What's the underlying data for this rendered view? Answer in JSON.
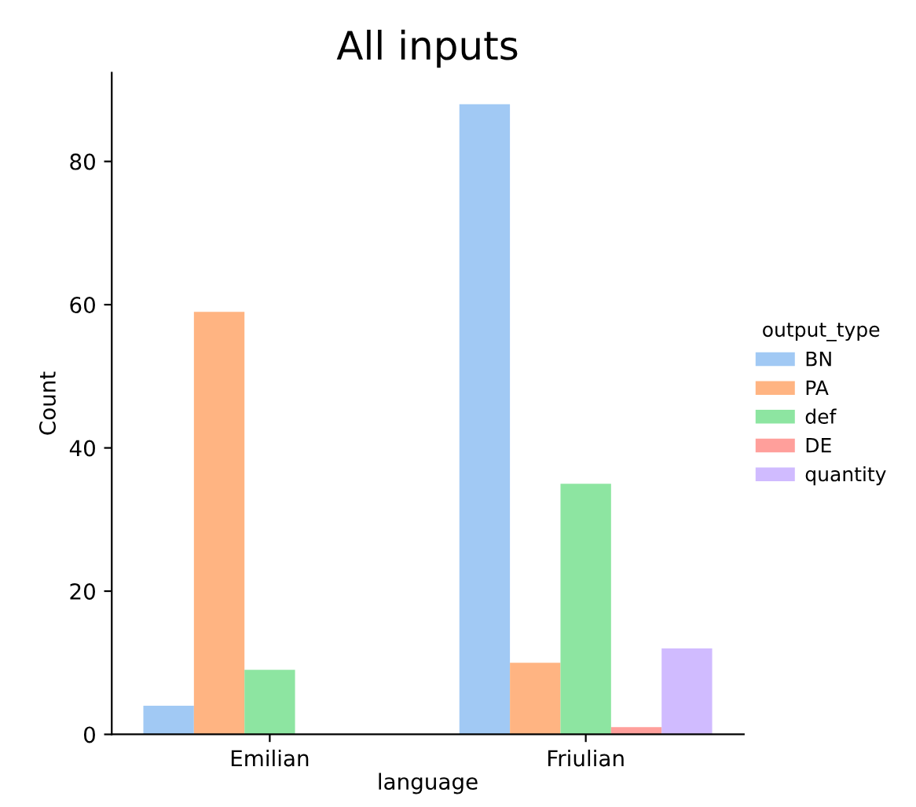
{
  "chart_data": {
    "type": "bar",
    "title": "All inputs",
    "xlabel": "language",
    "ylabel": "Count",
    "legend_title": "output_type",
    "legend": "right",
    "categories": [
      "Emilian",
      "Friulian"
    ],
    "series": [
      {
        "name": "BN",
        "color": "#a1c9f4",
        "values": [
          4,
          88
        ]
      },
      {
        "name": "PA",
        "color": "#ffb482",
        "values": [
          59,
          10
        ]
      },
      {
        "name": "def",
        "color": "#8de5a1",
        "values": [
          9,
          35
        ]
      },
      {
        "name": "DE",
        "color": "#ff9f9b",
        "values": [
          null,
          1
        ]
      },
      {
        "name": "quantity",
        "color": "#d0bbff",
        "values": [
          null,
          12
        ]
      }
    ],
    "ylim": [
      0,
      92.4
    ],
    "yticks": [
      0,
      20,
      40,
      60,
      80
    ],
    "grid": false
  }
}
